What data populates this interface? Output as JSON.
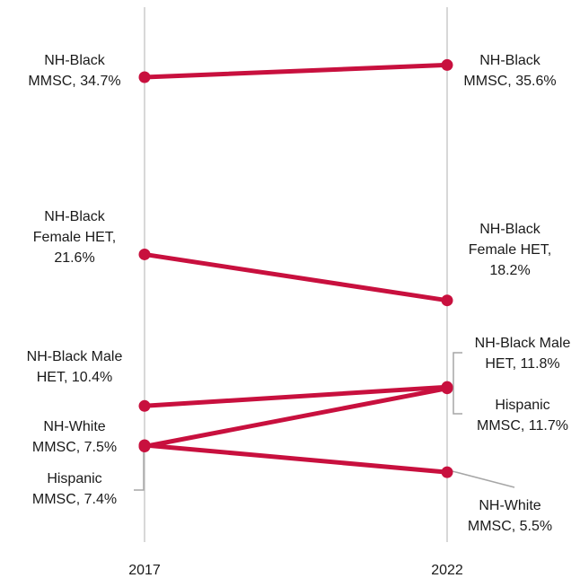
{
  "chart_data": {
    "type": "line",
    "title": "",
    "xlabel": "",
    "ylabel": "",
    "categories": [
      "2017",
      "2022"
    ],
    "ylim": [
      4,
      37
    ],
    "grid": false,
    "colors": {
      "line": "#c8103e",
      "axis": "#cccccc",
      "leader": "#a6a6a6"
    },
    "series": [
      {
        "values": [
          34.7,
          35.6
        ],
        "labels": [
          [
            "NH-Black",
            "MMSC, 34.7%"
          ],
          [
            "NH-Black",
            "MMSC, 35.6%"
          ]
        ]
      },
      {
        "values": [
          21.6,
          18.2
        ],
        "labels": [
          [
            "NH-Black",
            "Female HET,",
            "21.6%"
          ],
          [
            "NH-Black",
            "Female HET,",
            "18.2%"
          ]
        ]
      },
      {
        "values": [
          10.4,
          11.8
        ],
        "labels": [
          [
            "NH-Black Male",
            "HET, 10.4%"
          ],
          [
            "NH-Black Male",
            "HET, 11.8%"
          ]
        ]
      },
      {
        "values": [
          7.5,
          5.5
        ],
        "labels": [
          [
            "NH-White",
            "MMSC, 7.5%"
          ],
          [
            "NH-White",
            "MMSC, 5.5%"
          ]
        ]
      },
      {
        "values": [
          7.4,
          11.7
        ],
        "labels": [
          [
            "Hispanic",
            "MMSC, 7.4%"
          ],
          [
            "Hispanic",
            "MMSC, 11.7%"
          ]
        ]
      }
    ]
  }
}
